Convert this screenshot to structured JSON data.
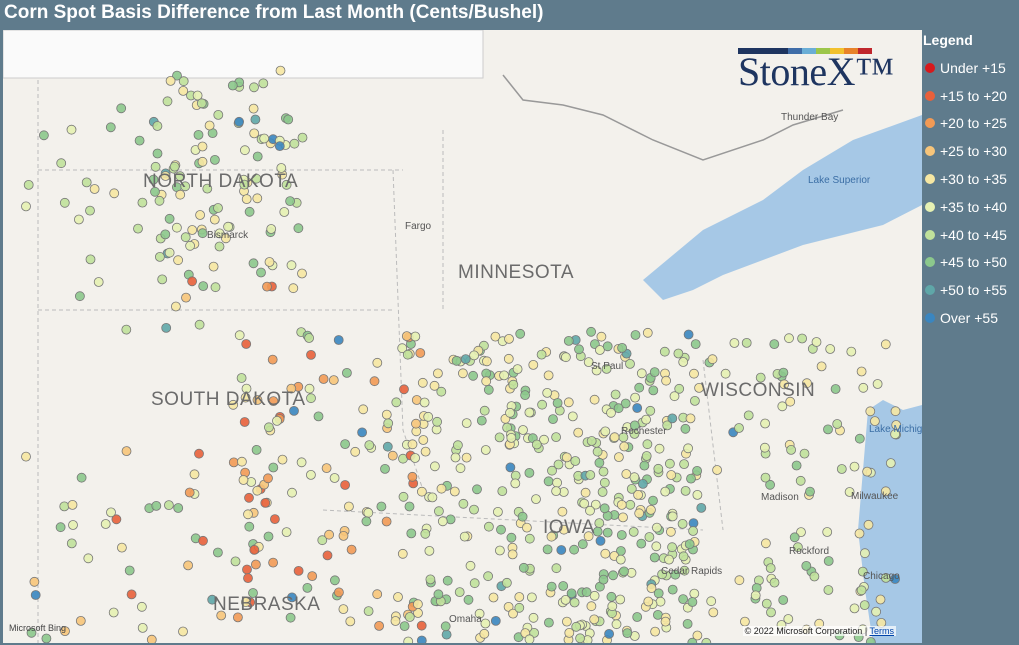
{
  "header": {
    "title": "Corn Spot Basis Difference from Last Month (Cents/Bushel)"
  },
  "logo": "StoneX™",
  "legend": {
    "title": "Legend",
    "items": [
      {
        "label": "Under +15",
        "color": "#d7191c"
      },
      {
        "label": "+15 to +20",
        "color": "#e8603b"
      },
      {
        "label": "+20 to +25",
        "color": "#f29a55"
      },
      {
        "label": "+25 to +30",
        "color": "#f7c57a"
      },
      {
        "label": "+30 to +35",
        "color": "#f6e7a2"
      },
      {
        "label": "+35 to +40",
        "color": "#e6f1b3"
      },
      {
        "label": "+40 to +45",
        "color": "#c0e19b"
      },
      {
        "label": "+45 to +50",
        "color": "#8cc88c"
      },
      {
        "label": "+50 to +55",
        "color": "#5fa7a8"
      },
      {
        "label": "Over +55",
        "color": "#3a86c0"
      }
    ]
  },
  "map_labels": {
    "states": [
      "NORTH DAKOTA",
      "MINNESOTA",
      "SOUTH DAKOTA",
      "WISCONSIN",
      "IOWA",
      "NEBRASKA"
    ],
    "cities": [
      "Bismarck",
      "Fargo",
      "Thunder Bay",
      "Milwaukee",
      "Madison",
      "Rockford",
      "Chicago",
      "Cedar Rapids",
      "Omaha",
      "St Paul",
      "Rochester"
    ],
    "water": [
      "Lake Superior",
      "Lake Michigan"
    ]
  },
  "attribution": {
    "bing": "Microsoft Bing",
    "copyright": "© 2022 Microsoft Corporation",
    "terms": "Terms"
  }
}
